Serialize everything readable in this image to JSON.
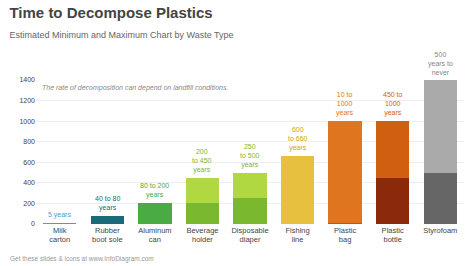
{
  "chart_data": {
    "type": "bar",
    "title": "Time to Decompose Plastics",
    "subtitle": "Estimated Minimum and Maximum Chart by Waste Type",
    "note": "The rate of decomposition can depend on landfill conditions.",
    "footer": "Get these slides & icons at www.InfoDiagram.com",
    "categories": [
      "Milk\ncarton",
      "Rubber\nboot sole",
      "Aluminum\ncan",
      "Beverage\nholder",
      "Disposable\ndiaper",
      "Fishing\nline",
      "Plastic\nbag",
      "Plastic\nbottle",
      "Styrofoam"
    ],
    "stacked": true,
    "series": [
      {
        "colors": [
          "#4a9cc9",
          "#1a6b7a",
          "#4aaa44",
          "#7ab830",
          "#7ab830",
          "#e8c040",
          "#c85010",
          "#8b2a0a",
          "#666666"
        ],
        "values": [
          5,
          40,
          80,
          200,
          250,
          600,
          10,
          450,
          500
        ]
      },
      {
        "colors": [
          "#4a9cc9",
          "#1a6b7a",
          "#4aaa44",
          "#b0d840",
          "#b0d840",
          "#e8c040",
          "#e07520",
          "#d06010",
          "#aaaaaa"
        ],
        "values": [
          0,
          40,
          120,
          250,
          250,
          60,
          990,
          550,
          900
        ]
      }
    ],
    "annotations": [
      {
        "category": "Milk\ncarton",
        "text": "5 years",
        "color": "#4a9cc9"
      },
      {
        "category": "Rubber\nboot sole",
        "text": "40 to 80\nyears",
        "color": "#1a6b7a"
      },
      {
        "category": "Aluminum\ncan",
        "text": "80 to 200\nyears",
        "color": "#4aaa44"
      },
      {
        "category": "Beverage\nholder",
        "text": "200\nto 450\nyears",
        "color": "#7ab830"
      },
      {
        "category": "Disposable\ndiaper",
        "text": "250\nto 500\nyears",
        "color": "#7ab830"
      },
      {
        "category": "Fishing\nline",
        "text": "600\nto 660\nyears",
        "color": "#c8a800"
      },
      {
        "category": "Plastic\nbag",
        "text": "10 to\n1000\nyears",
        "color": "#e07520"
      },
      {
        "category": "Plastic\nbottle",
        "text": "450 to\n1000\nyears",
        "color": "#d06010"
      },
      {
        "category": "Styrofoam",
        "text": "500\nyears to\nnever",
        "color": "#888888"
      }
    ],
    "ylim": [
      0,
      1400
    ],
    "yticks": [
      0,
      200,
      400,
      600,
      800,
      1000,
      1200,
      1400
    ],
    "grid": true
  }
}
